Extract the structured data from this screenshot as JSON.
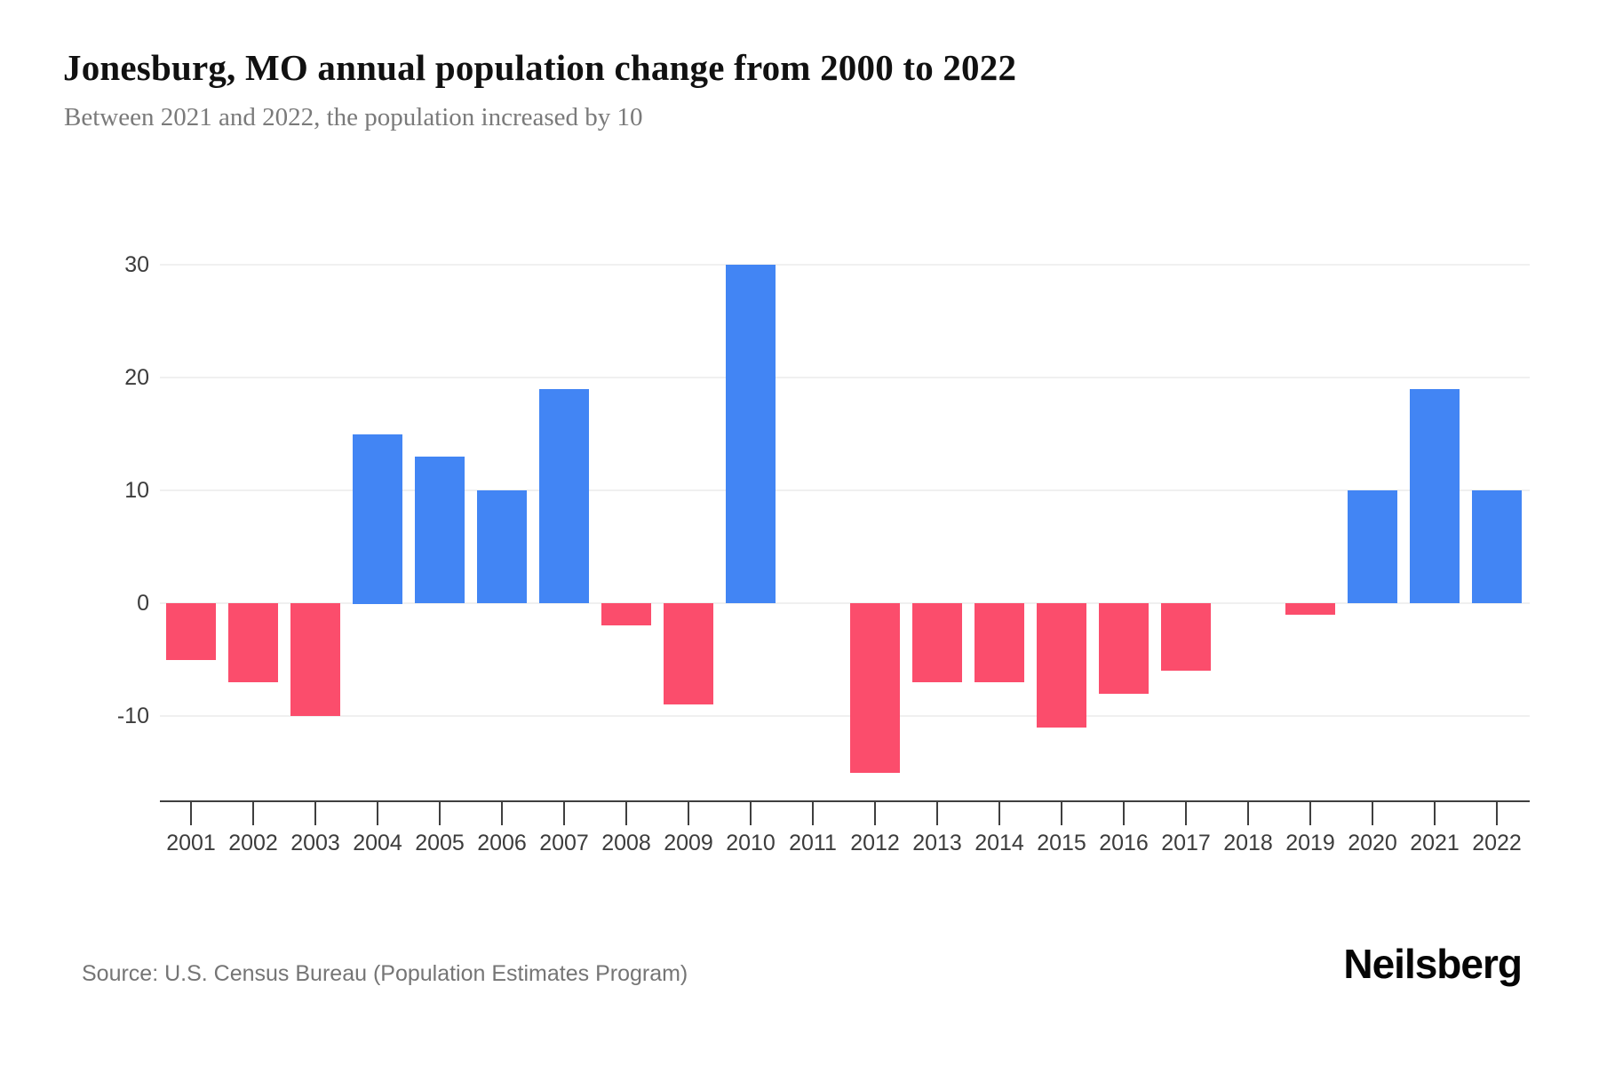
{
  "footer": {
    "source": "Source: U.S. Census Bureau (Population Estimates Program)",
    "brand": "Neilsberg"
  },
  "chart_data": {
    "type": "bar",
    "title": "Jonesburg, MO annual population change from 2000 to 2022",
    "subtitle": "Between 2021 and 2022, the population increased by 10",
    "categories": [
      "2001",
      "2002",
      "2003",
      "2004",
      "2005",
      "2006",
      "2007",
      "2008",
      "2009",
      "2010",
      "2011",
      "2012",
      "2013",
      "2014",
      "2015",
      "2016",
      "2017",
      "2018",
      "2019",
      "2020",
      "2021",
      "2022"
    ],
    "values": [
      -5,
      -7,
      -10,
      15,
      13,
      10,
      19,
      -2,
      -9,
      30,
      0,
      -15,
      -7,
      -7,
      -11,
      -8,
      -6,
      0,
      -1,
      10,
      19,
      10
    ],
    "xlabel": "",
    "ylabel": "",
    "y_ticks": [
      30,
      20,
      10,
      0,
      -10
    ],
    "ylim": [
      -17.5,
      30
    ],
    "grid": "horizontal",
    "legend": "none",
    "colors": {
      "positive": "#4285F4",
      "negative": "#FB4D6C"
    }
  }
}
